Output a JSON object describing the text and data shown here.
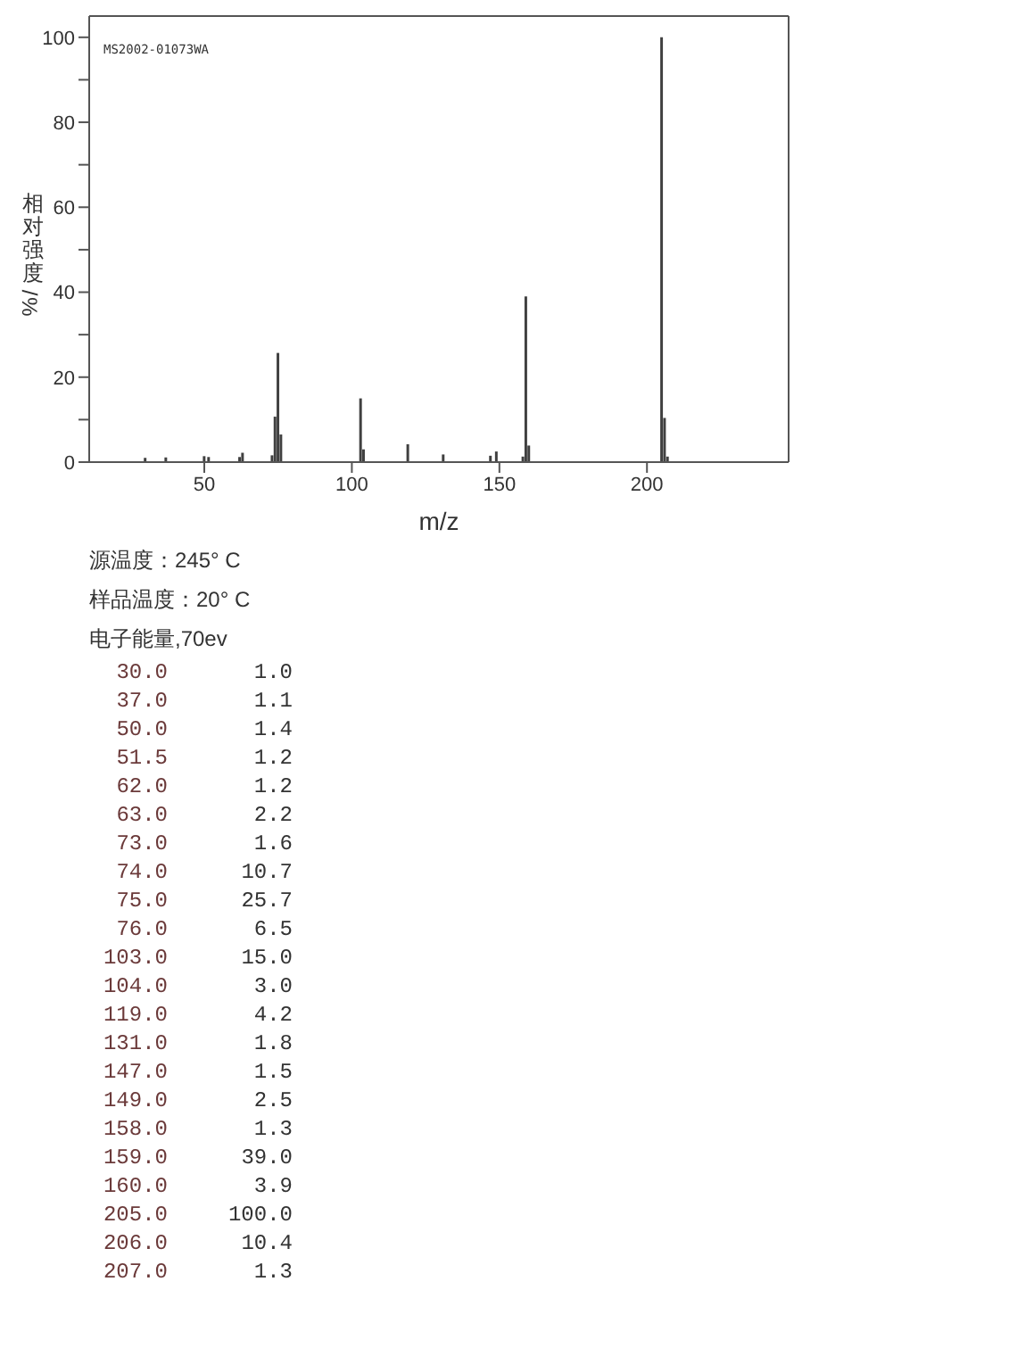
{
  "chart_data": [
    {
      "type": "bar",
      "xlabel": "m/z",
      "ylabel": "相对强度/%",
      "annotations": [
        "MS2002-01073WA"
      ],
      "x": [
        30,
        37,
        50,
        51.5,
        62,
        63,
        73,
        74,
        75,
        76,
        103,
        104,
        119,
        131,
        147,
        149,
        158,
        159,
        160,
        205,
        206,
        207
      ],
      "values": [
        1.0,
        1.1,
        1.4,
        1.2,
        1.2,
        2.2,
        1.6,
        10.7,
        25.7,
        6.5,
        15.0,
        3.0,
        4.2,
        1.8,
        1.5,
        2.5,
        1.3,
        39.0,
        3.9,
        100.0,
        10.4,
        1.3
      ],
      "color": "#404040",
      "xlim": [
        11,
        248
      ],
      "xticks": [
        50,
        100,
        150,
        200
      ],
      "ylim": [
        0,
        105
      ],
      "yticks": [
        0,
        {
          "value": 10,
          "label": null
        },
        20,
        {
          "value": 30,
          "label": null
        },
        40,
        {
          "value": 50,
          "label": null
        },
        60,
        {
          "value": 70,
          "label": null
        },
        80,
        {
          "value": 90,
          "label": null
        },
        100
      ]
    },
    {
      "type": "other",
      "annotations": [
        "源温度：245° C",
        "样品温度：20° C",
        "电子能量,70ev"
      ],
      "categories": [
        "30.0",
        "37.0",
        "50.0",
        "51.5",
        "62.0",
        "63.0",
        "73.0",
        "74.0",
        "75.0",
        "76.0",
        "103.0",
        "104.0",
        "119.0",
        "131.0",
        "147.0",
        "149.0",
        "158.0",
        "159.0",
        "160.0",
        "205.0",
        "206.0",
        "207.0"
      ],
      "values": [
        1.0,
        1.1,
        1.4,
        1.2,
        1.2,
        2.2,
        1.6,
        10.7,
        25.7,
        6.5,
        15.0,
        3.0,
        4.2,
        1.8,
        1.5,
        2.5,
        1.3,
        39.0,
        3.9,
        100.0,
        10.4,
        1.3
      ],
      "value_labels": [
        "1.0",
        "1.1",
        "1.4",
        "1.2",
        "1.2",
        "2.2",
        "1.6",
        "10.7",
        "25.7",
        "6.5",
        "15.0",
        "3.0",
        "4.2",
        "1.8",
        "1.5",
        "2.5",
        "1.3",
        "39.0",
        "3.9",
        "100.0",
        "10.4",
        "1.3"
      ]
    }
  ]
}
